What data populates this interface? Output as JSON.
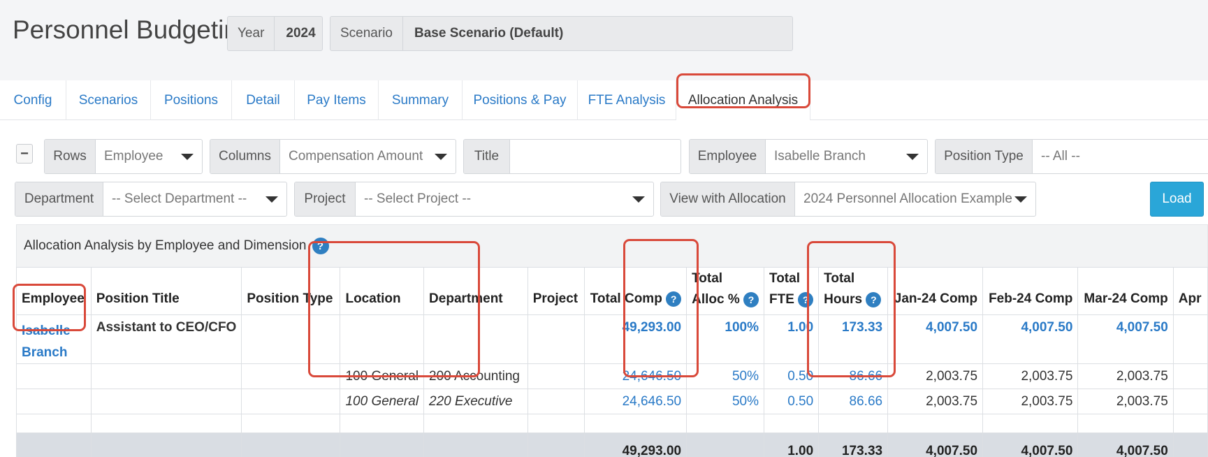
{
  "header": {
    "title": "Personnel Budgeting",
    "year_label": "Year",
    "year_value": "2024",
    "scenario_label": "Scenario",
    "scenario_value": "Base Scenario (Default)"
  },
  "tabs": [
    "Config",
    "Scenarios",
    "Positions",
    "Detail",
    "Pay Items",
    "Summary",
    "Positions & Pay",
    "FTE Analysis",
    "Allocation Analysis"
  ],
  "active_tab": "Allocation Analysis",
  "filters": {
    "collapse_symbol": "−",
    "rows_label": "Rows",
    "rows_value": "Employee",
    "columns_label": "Columns",
    "columns_value": "Compensation Amount",
    "title_label": "Title",
    "title_value": "",
    "employee_label": "Employee",
    "employee_value": "Isabelle Branch",
    "position_type_label": "Position Type",
    "position_type_value": "-- All --",
    "department_label": "Department",
    "department_value": "-- Select Department --",
    "project_label": "Project",
    "project_value": "-- Select Project --",
    "allocation_label": "View with Allocation",
    "allocation_value": "2024 Personnel Allocation Example",
    "load_label": "Load"
  },
  "panel": {
    "title": "Allocation Analysis by Employee and Dimension",
    "help_symbol": "?"
  },
  "table": {
    "headers": {
      "employee": "Employee",
      "position_title": "Position Title",
      "position_type": "Position Type",
      "location": "Location",
      "department": "Department",
      "project": "Project",
      "total_comp": "Total Comp",
      "total_alloc_1": "Total",
      "total_alloc_2": "Alloc %",
      "total_fte_1": "Total",
      "total_fte_2": "FTE",
      "total_hours_1": "Total",
      "total_hours_2": "Hours",
      "jan": "Jan-24 Comp",
      "feb": "Feb-24 Comp",
      "mar": "Mar-24 Comp",
      "apr": "Apr"
    },
    "employee_row": {
      "employee_line1": "Isabelle",
      "employee_line2": "Branch",
      "position_title": "Assistant to CEO/CFO",
      "total_comp": "49,293.00",
      "alloc": "100%",
      "fte": "1.00",
      "hours": "173.33",
      "jan": "4,007.50",
      "feb": "4,007.50",
      "mar": "4,007.50"
    },
    "alloc_rows": [
      {
        "location": "100 General",
        "department": "200 Accounting",
        "total_comp": "24,646.50",
        "alloc": "50%",
        "fte": "0.50",
        "hours": "86.66",
        "jan": "2,003.75",
        "feb": "2,003.75",
        "mar": "2,003.75"
      },
      {
        "location": "100 General",
        "department": "220 Executive",
        "total_comp": "24,646.50",
        "alloc": "50%",
        "fte": "0.50",
        "hours": "86.66",
        "jan": "2,003.75",
        "feb": "2,003.75",
        "mar": "2,003.75"
      }
    ],
    "totals": {
      "total_comp": "49,293.00",
      "fte": "1.00",
      "hours": "173.33",
      "jan": "4,007.50",
      "feb": "4,007.50",
      "mar": "4,007.50"
    }
  },
  "colors": {
    "link": "#2a7ac7",
    "highlight": "#d9493a",
    "load_button": "#2aa6d8"
  }
}
